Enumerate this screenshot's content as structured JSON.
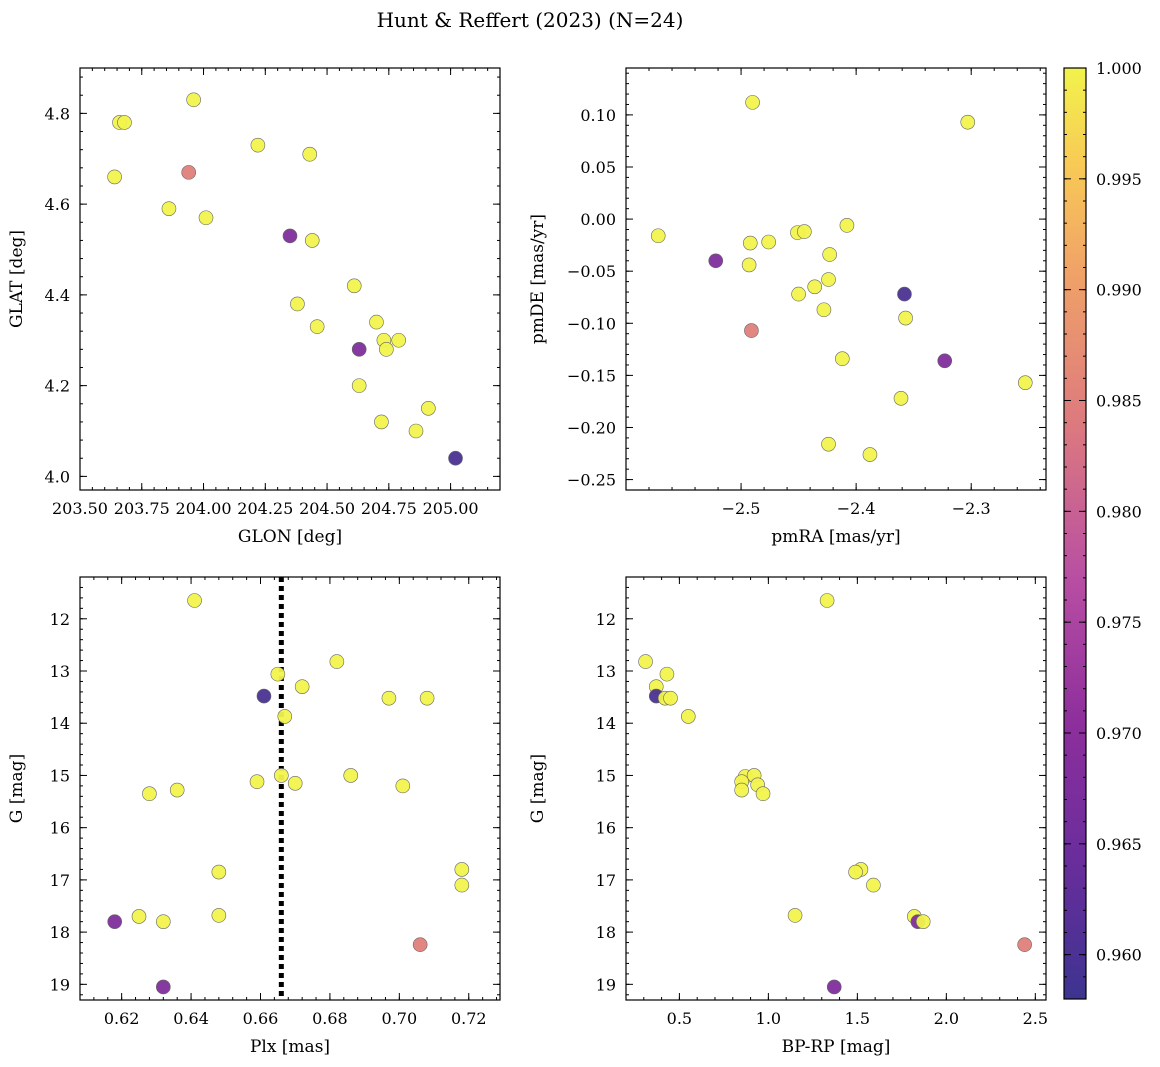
{
  "figure": {
    "title": "Hunt & Reffert (2023) (N=24)"
  },
  "colorbar": {
    "colormap": "plasma",
    "range": [
      0.958,
      1.0
    ],
    "ticks": [
      0.96,
      0.965,
      0.97,
      0.975,
      0.98,
      0.985,
      0.99,
      0.995,
      1.0
    ],
    "tick_labels": [
      "0.960",
      "0.965",
      "0.970",
      "0.975",
      "0.980",
      "0.985",
      "0.990",
      "0.995",
      "1.000"
    ]
  },
  "chart_data": [
    {
      "type": "scatter",
      "xlabel": "GLON [deg]",
      "ylabel": "GLAT [deg]",
      "xlim": [
        203.5,
        205.2
      ],
      "ylim": [
        3.97,
        4.9
      ],
      "xticks": [
        203.5,
        203.75,
        204.0,
        204.25,
        204.5,
        204.75,
        205.0
      ],
      "xtick_labels": [
        "203.50",
        "203.75",
        "204.00",
        "204.25",
        "204.50",
        "204.75",
        "205.00"
      ],
      "yticks": [
        4.0,
        4.2,
        4.4,
        4.6,
        4.8
      ],
      "ytick_labels": [
        "4.0",
        "4.2",
        "4.4",
        "4.6",
        "4.8"
      ],
      "points": [
        {
          "x": 203.66,
          "y": 4.78,
          "c": 1.0
        },
        {
          "x": 203.68,
          "y": 4.78,
          "c": 1.0
        },
        {
          "x": 203.64,
          "y": 4.66,
          "c": 1.0
        },
        {
          "x": 203.96,
          "y": 4.83,
          "c": 1.0
        },
        {
          "x": 203.94,
          "y": 4.67,
          "c": 0.985
        },
        {
          "x": 203.86,
          "y": 4.59,
          "c": 1.0
        },
        {
          "x": 204.01,
          "y": 4.57,
          "c": 1.0
        },
        {
          "x": 204.22,
          "y": 4.73,
          "c": 1.0
        },
        {
          "x": 204.43,
          "y": 4.71,
          "c": 1.0
        },
        {
          "x": 204.35,
          "y": 4.53,
          "c": 0.968
        },
        {
          "x": 204.44,
          "y": 4.52,
          "c": 1.0
        },
        {
          "x": 204.38,
          "y": 4.38,
          "c": 1.0
        },
        {
          "x": 204.61,
          "y": 4.42,
          "c": 1.0
        },
        {
          "x": 204.46,
          "y": 4.33,
          "c": 1.0
        },
        {
          "x": 204.7,
          "y": 4.34,
          "c": 1.0
        },
        {
          "x": 204.63,
          "y": 4.28,
          "c": 0.968
        },
        {
          "x": 204.73,
          "y": 4.3,
          "c": 1.0
        },
        {
          "x": 204.74,
          "y": 4.28,
          "c": 1.0
        },
        {
          "x": 204.79,
          "y": 4.3,
          "c": 1.0
        },
        {
          "x": 204.63,
          "y": 4.2,
          "c": 1.0
        },
        {
          "x": 204.72,
          "y": 4.12,
          "c": 1.0
        },
        {
          "x": 204.91,
          "y": 4.15,
          "c": 1.0
        },
        {
          "x": 204.86,
          "y": 4.1,
          "c": 1.0
        },
        {
          "x": 205.02,
          "y": 4.04,
          "c": 0.96
        }
      ]
    },
    {
      "type": "scatter",
      "xlabel": "pmRA [mas/yr]",
      "ylabel": "pmDE [mas/yr]",
      "xlim": [
        -2.6,
        -2.235
      ],
      "ylim": [
        -0.26,
        0.145
      ],
      "xticks": [
        -2.5,
        -2.4,
        -2.3
      ],
      "xtick_labels": [
        "−2.5",
        "−2.4",
        "−2.3"
      ],
      "yticks": [
        -0.25,
        -0.2,
        -0.15,
        -0.1,
        -0.05,
        0.0,
        0.05,
        0.1
      ],
      "ytick_labels": [
        "−0.25",
        "−0.20",
        "−0.15",
        "−0.10",
        "−0.05",
        "0.00",
        "0.05",
        "0.10"
      ],
      "points": [
        {
          "x": -2.572,
          "y": -0.016,
          "c": 1.0
        },
        {
          "x": -2.49,
          "y": 0.112,
          "c": 1.0
        },
        {
          "x": -2.303,
          "y": 0.093,
          "c": 1.0
        },
        {
          "x": -2.522,
          "y": -0.04,
          "c": 0.968
        },
        {
          "x": -2.492,
          "y": -0.023,
          "c": 1.0
        },
        {
          "x": -2.493,
          "y": -0.044,
          "c": 1.0
        },
        {
          "x": -2.476,
          "y": -0.022,
          "c": 1.0
        },
        {
          "x": -2.451,
          "y": -0.013,
          "c": 1.0
        },
        {
          "x": -2.445,
          "y": -0.012,
          "c": 1.0
        },
        {
          "x": -2.408,
          "y": -0.006,
          "c": 1.0
        },
        {
          "x": -2.423,
          "y": -0.034,
          "c": 1.0
        },
        {
          "x": -2.424,
          "y": -0.058,
          "c": 1.0
        },
        {
          "x": -2.436,
          "y": -0.065,
          "c": 1.0
        },
        {
          "x": -2.45,
          "y": -0.072,
          "c": 1.0
        },
        {
          "x": -2.428,
          "y": -0.087,
          "c": 1.0
        },
        {
          "x": -2.491,
          "y": -0.107,
          "c": 0.985
        },
        {
          "x": -2.358,
          "y": -0.072,
          "c": 0.96
        },
        {
          "x": -2.357,
          "y": -0.095,
          "c": 1.0
        },
        {
          "x": -2.323,
          "y": -0.136,
          "c": 0.968
        },
        {
          "x": -2.412,
          "y": -0.134,
          "c": 1.0
        },
        {
          "x": -2.253,
          "y": -0.157,
          "c": 1.0
        },
        {
          "x": -2.361,
          "y": -0.172,
          "c": 1.0
        },
        {
          "x": -2.424,
          "y": -0.216,
          "c": 1.0
        },
        {
          "x": -2.388,
          "y": -0.226,
          "c": 1.0
        }
      ]
    },
    {
      "type": "scatter",
      "xlabel": "Plx [mas]",
      "ylabel": "G [mag]",
      "xlim": [
        0.608,
        0.729
      ],
      "ylim": [
        19.3,
        11.2
      ],
      "y_inverted": true,
      "vline_x": 0.666,
      "xticks": [
        0.62,
        0.64,
        0.66,
        0.68,
        0.7,
        0.72
      ],
      "xtick_labels": [
        "0.62",
        "0.64",
        "0.66",
        "0.68",
        "0.70",
        "0.72"
      ],
      "yticks": [
        12,
        13,
        14,
        15,
        16,
        17,
        18,
        19
      ],
      "ytick_labels": [
        "12",
        "13",
        "14",
        "15",
        "16",
        "17",
        "18",
        "19"
      ],
      "points": [
        {
          "x": 0.641,
          "y": 11.65,
          "c": 1.0
        },
        {
          "x": 0.682,
          "y": 12.82,
          "c": 1.0
        },
        {
          "x": 0.665,
          "y": 13.06,
          "c": 1.0
        },
        {
          "x": 0.672,
          "y": 13.3,
          "c": 1.0
        },
        {
          "x": 0.661,
          "y": 13.48,
          "c": 0.96
        },
        {
          "x": 0.697,
          "y": 13.52,
          "c": 1.0
        },
        {
          "x": 0.708,
          "y": 13.52,
          "c": 1.0
        },
        {
          "x": 0.667,
          "y": 13.87,
          "c": 1.0
        },
        {
          "x": 0.666,
          "y": 15.0,
          "c": 1.0
        },
        {
          "x": 0.686,
          "y": 15.0,
          "c": 1.0
        },
        {
          "x": 0.659,
          "y": 15.12,
          "c": 1.0
        },
        {
          "x": 0.67,
          "y": 15.15,
          "c": 1.0
        },
        {
          "x": 0.701,
          "y": 15.2,
          "c": 1.0
        },
        {
          "x": 0.636,
          "y": 15.28,
          "c": 1.0
        },
        {
          "x": 0.628,
          "y": 15.35,
          "c": 1.0
        },
        {
          "x": 0.718,
          "y": 16.8,
          "c": 1.0
        },
        {
          "x": 0.648,
          "y": 16.85,
          "c": 1.0
        },
        {
          "x": 0.718,
          "y": 17.1,
          "c": 1.0
        },
        {
          "x": 0.625,
          "y": 17.7,
          "c": 1.0
        },
        {
          "x": 0.648,
          "y": 17.68,
          "c": 1.0
        },
        {
          "x": 0.618,
          "y": 17.8,
          "c": 0.968
        },
        {
          "x": 0.632,
          "y": 17.8,
          "c": 1.0
        },
        {
          "x": 0.706,
          "y": 18.24,
          "c": 0.985
        },
        {
          "x": 0.632,
          "y": 19.05,
          "c": 0.968
        }
      ]
    },
    {
      "type": "scatter",
      "xlabel": "BP-RP [mag]",
      "ylabel": "G [mag]",
      "xlim": [
        0.2,
        2.56
      ],
      "ylim": [
        19.3,
        11.2
      ],
      "y_inverted": true,
      "xticks": [
        0.5,
        1.0,
        1.5,
        2.0,
        2.5
      ],
      "xtick_labels": [
        "0.5",
        "1.0",
        "1.5",
        "2.0",
        "2.5"
      ],
      "yticks": [
        12,
        13,
        14,
        15,
        16,
        17,
        18,
        19
      ],
      "ytick_labels": [
        "12",
        "13",
        "14",
        "15",
        "16",
        "17",
        "18",
        "19"
      ],
      "points": [
        {
          "x": 1.33,
          "y": 11.65,
          "c": 1.0
        },
        {
          "x": 0.31,
          "y": 12.82,
          "c": 1.0
        },
        {
          "x": 0.43,
          "y": 13.06,
          "c": 1.0
        },
        {
          "x": 0.37,
          "y": 13.3,
          "c": 1.0
        },
        {
          "x": 0.37,
          "y": 13.48,
          "c": 0.96
        },
        {
          "x": 0.42,
          "y": 13.52,
          "c": 1.0
        },
        {
          "x": 0.45,
          "y": 13.52,
          "c": 1.0
        },
        {
          "x": 0.55,
          "y": 13.87,
          "c": 1.0
        },
        {
          "x": 0.87,
          "y": 15.02,
          "c": 1.0
        },
        {
          "x": 0.92,
          "y": 15.0,
          "c": 1.0
        },
        {
          "x": 0.85,
          "y": 15.12,
          "c": 1.0
        },
        {
          "x": 0.94,
          "y": 15.18,
          "c": 1.0
        },
        {
          "x": 0.85,
          "y": 15.28,
          "c": 1.0
        },
        {
          "x": 0.97,
          "y": 15.35,
          "c": 1.0
        },
        {
          "x": 1.52,
          "y": 16.8,
          "c": 1.0
        },
        {
          "x": 1.49,
          "y": 16.85,
          "c": 1.0
        },
        {
          "x": 1.59,
          "y": 17.1,
          "c": 1.0
        },
        {
          "x": 1.15,
          "y": 17.68,
          "c": 1.0
        },
        {
          "x": 1.82,
          "y": 17.7,
          "c": 1.0
        },
        {
          "x": 1.84,
          "y": 17.8,
          "c": 0.968
        },
        {
          "x": 1.87,
          "y": 17.8,
          "c": 1.0
        },
        {
          "x": 2.44,
          "y": 18.24,
          "c": 0.985
        },
        {
          "x": 1.37,
          "y": 19.05,
          "c": 0.968
        }
      ]
    }
  ]
}
